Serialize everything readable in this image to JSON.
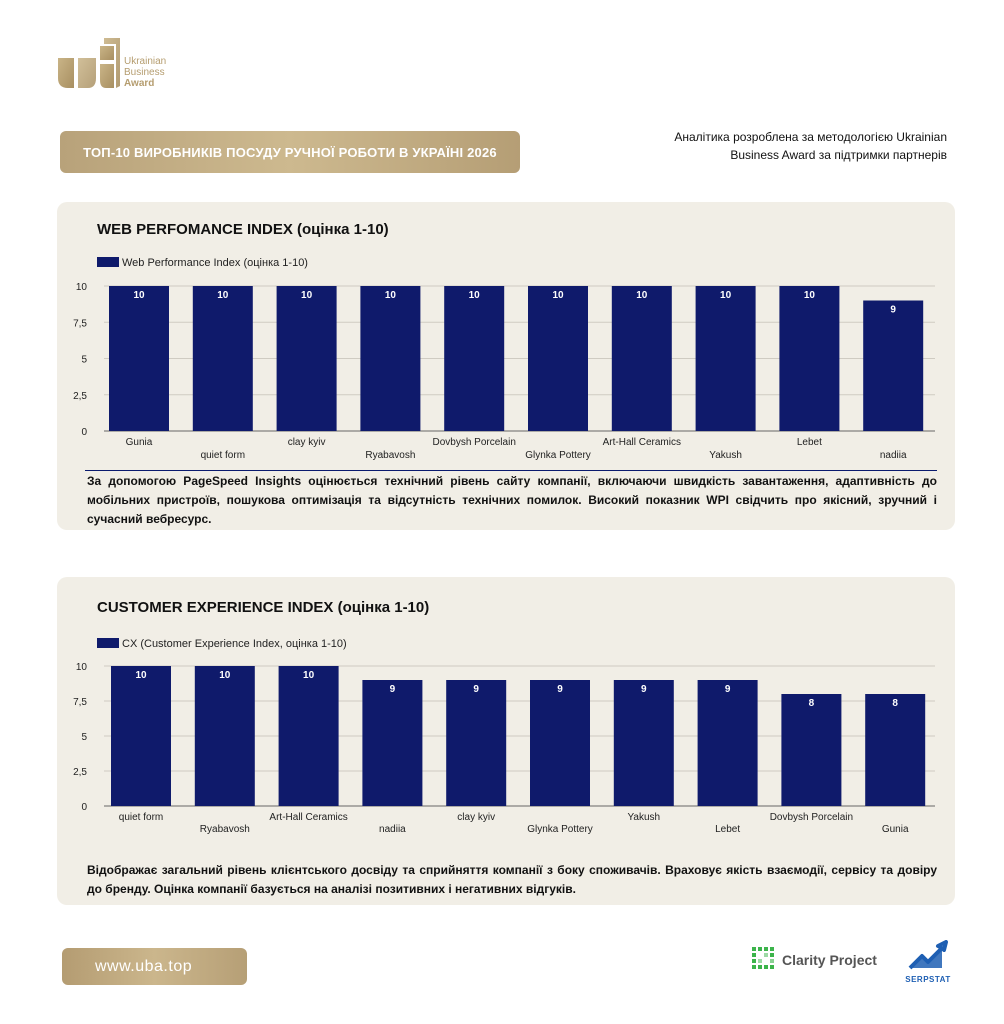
{
  "logo": {
    "line1": "Ukrainian",
    "line2": "Business",
    "line3": "Award"
  },
  "header": {
    "title": "ТОП-10 ВИРОБНИКІВ ПОСУДУ РУЧНОЇ РОБОТИ В УКРАЇНІ 2026",
    "methodology_line1": "Аналітика розроблена за методологією Ukrainian",
    "methodology_line2": "Business Award за підтримки партнерів"
  },
  "panel1": {
    "title": "WEB PERFOMANCE INDEX (оцінка 1-10)",
    "description": "За допомогою PageSpeed Insights оцінюється технічний рівень сайту компанії, включаючи швидкість завантаження, адаптивність до мобільних пристроїв, пошукова оптимізація та відсутність технічних помилок. Високий показник WPI свідчить про якісний, зручний і сучасний вебресурс."
  },
  "panel2": {
    "title": "CUSTOMER EXPERIENCE INDEX (оцінка 1-10)",
    "description": "Відображає загальний рівень клієнтського досвіду та сприйняття компанії з боку споживачів. Враховує якість взаємодії, сервісу та довіру до бренду. Оцінка компанії базується на аналізі позитивних і негативних відгуків."
  },
  "footer": {
    "website": "www.uba.top",
    "partner1": "Clarity Project",
    "partner2": "SERPSTAT"
  },
  "colors": {
    "bar": "#0f1a6b",
    "gold": "#b8a27a",
    "panel_bg": "#f1eee6"
  },
  "chart_data": [
    {
      "type": "bar",
      "title": "WEB PERFOMANCE INDEX (оцінка 1-10)",
      "categories": [
        "Gunia",
        "quiet form",
        "clay kyiv",
        "Ryabavosh",
        "Dovbysh Porcelain",
        "Glynka Pottery",
        "Art-Hall Ceramics",
        "Yakush",
        "Lebet",
        "nadiia"
      ],
      "series": [
        {
          "name": "Web Performance Index (оцінка 1-10)",
          "values": [
            10,
            10,
            10,
            10,
            10,
            10,
            10,
            10,
            10,
            9
          ]
        }
      ],
      "ylim": [
        0,
        10
      ],
      "yticks": [
        "0",
        "2,5",
        "5",
        "7,5",
        "10"
      ],
      "legend": "top-left",
      "grid": true
    },
    {
      "type": "bar",
      "title": "CUSTOMER EXPERIENCE INDEX (оцінка 1-10)",
      "categories": [
        "quiet form",
        "Ryabavosh",
        "Art-Hall Ceramics",
        "nadiia",
        "clay kyiv",
        "Glynka Pottery",
        "Yakush",
        "Lebet",
        "Dovbysh Porcelain",
        "Gunia"
      ],
      "series": [
        {
          "name": "CX (Customer Experience Index, оцінка 1-10)",
          "values": [
            10,
            10,
            10,
            9,
            9,
            9,
            9,
            9,
            8,
            8
          ]
        }
      ],
      "ylim": [
        0,
        10
      ],
      "yticks": [
        "0",
        "2,5",
        "5",
        "7,5",
        "10"
      ],
      "legend": "top-left",
      "grid": true
    }
  ]
}
